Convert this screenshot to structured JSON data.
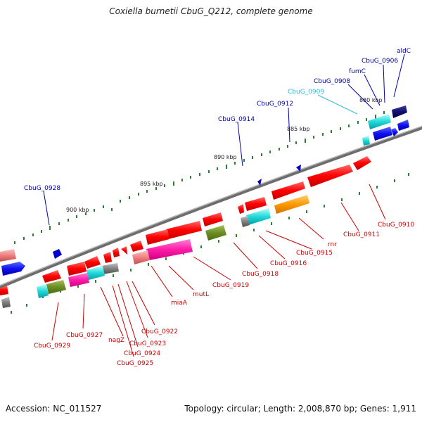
{
  "title": "Coxiella burnetii CbuG_Q212, complete genome",
  "footer": {
    "accession": "Accession: NC_011527",
    "topology": "Topology: circular; Length: 2,008,870 bp; Genes: 1,911"
  },
  "colors": {
    "backbone": "#888888",
    "tick": "#2e7d32",
    "label_forward": "#0000aa",
    "label_reverse": "#cc0000",
    "label_cyan": "#33bbdd"
  },
  "ruler": [
    {
      "label": "880 kbp"
    },
    {
      "label": "885 kbp"
    },
    {
      "label": "890 kbp"
    },
    {
      "label": "895 kbp"
    },
    {
      "label": "900 kbp"
    }
  ],
  "genes_top": [
    {
      "label": "aldC"
    },
    {
      "label": "CbuG_0906"
    },
    {
      "label": "fumC"
    },
    {
      "label": "CbuG_0908"
    },
    {
      "label": "CbuG_0909"
    },
    {
      "label": "CbuG_0912"
    },
    {
      "label": "CbuG_0914"
    },
    {
      "label": "CbuG_0928"
    }
  ],
  "genes_bottom": [
    {
      "label": "CbuG_0910"
    },
    {
      "label": "CbuG_0911"
    },
    {
      "label": "rnr"
    },
    {
      "label": "CbuG_0915"
    },
    {
      "label": "CbuG_0916"
    },
    {
      "label": "CbuG_0918"
    },
    {
      "label": "CbuG_0919"
    },
    {
      "label": "mutL"
    },
    {
      "label": "miaA"
    },
    {
      "label": "CbuG_0922"
    },
    {
      "label": "CbuG_0923"
    },
    {
      "label": "CbuG_0924"
    },
    {
      "label": "CbuG_0925"
    },
    {
      "label": "nagZ"
    },
    {
      "label": "CbuG_0927"
    },
    {
      "label": "CbuG_0929"
    }
  ]
}
